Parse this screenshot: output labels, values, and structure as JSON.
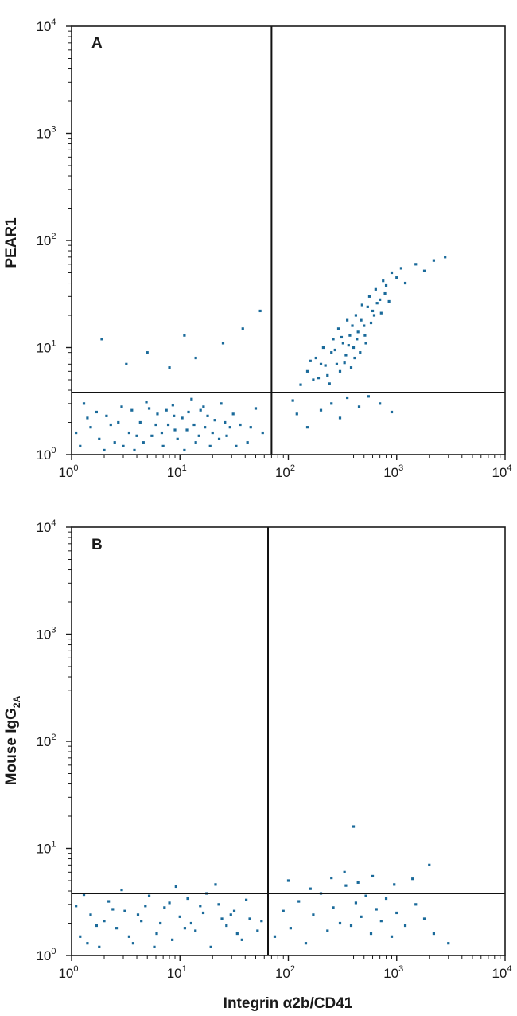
{
  "chart_data": [
    {
      "type": "scatter",
      "panel": "A",
      "xlabel": "",
      "ylabel": "PEAR1",
      "xscale": "log",
      "yscale": "log",
      "xlim": [
        1,
        10000
      ],
      "ylim": [
        1,
        10000
      ],
      "x_tick_labels": [
        {
          "base": "10",
          "exp": "0"
        },
        {
          "base": "10",
          "exp": "1"
        },
        {
          "base": "10",
          "exp": "2"
        },
        {
          "base": "10",
          "exp": "3"
        },
        {
          "base": "10",
          "exp": "4"
        }
      ],
      "y_tick_labels": [
        {
          "base": "10",
          "exp": "0"
        },
        {
          "base": "10",
          "exp": "1"
        },
        {
          "base": "10",
          "exp": "2"
        },
        {
          "base": "10",
          "exp": "3"
        },
        {
          "base": "10",
          "exp": "4"
        }
      ],
      "quadrant_gate": {
        "x": 70,
        "y": 3.8
      },
      "point_color": "#1a6a9a",
      "series": [
        {
          "points": [
            [
              1.2,
              1.2
            ],
            [
              1.5,
              1.8
            ],
            [
              1.8,
              1.4
            ],
            [
              2.1,
              2.3
            ],
            [
              2.5,
              1.3
            ],
            [
              2.9,
              2.8
            ],
            [
              3.4,
              1.6
            ],
            [
              3.8,
              1.1
            ],
            [
              4.3,
              2.0
            ],
            [
              4.9,
              3.1
            ],
            [
              5.5,
              1.5
            ],
            [
              6.2,
              2.4
            ],
            [
              7.0,
              1.2
            ],
            [
              7.8,
              1.9
            ],
            [
              8.6,
              2.9
            ],
            [
              9.5,
              1.4
            ],
            [
              10.5,
              2.2
            ],
            [
              11.6,
              1.7
            ],
            [
              12.8,
              3.3
            ],
            [
              14.0,
              1.3
            ],
            [
              15.5,
              2.6
            ],
            [
              17.0,
              1.8
            ],
            [
              19.0,
              1.2
            ],
            [
              21.0,
              2.1
            ],
            [
              24.0,
              3.0
            ],
            [
              27.0,
              1.5
            ],
            [
              31.0,
              2.4
            ],
            [
              36.0,
              1.9
            ],
            [
              42.0,
              1.3
            ],
            [
              50.0,
              2.7
            ],
            [
              58.0,
              1.6
            ],
            [
              1.3,
              3.0
            ],
            [
              1.7,
              2.5
            ],
            [
              2.3,
              1.9
            ],
            [
              3.0,
              1.2
            ],
            [
              4.0,
              1.5
            ],
            [
              5.2,
              2.7
            ],
            [
              6.8,
              1.6
            ],
            [
              8.8,
              2.3
            ],
            [
              11.0,
              1.1
            ],
            [
              13.5,
              1.9
            ],
            [
              16.5,
              2.8
            ],
            [
              20.0,
              1.6
            ],
            [
              26.0,
              2.0
            ],
            [
              33.0,
              1.2
            ],
            [
              45.0,
              1.8
            ],
            [
              1.1,
              1.6
            ],
            [
              1.4,
              2.2
            ],
            [
              2.0,
              1.1
            ],
            [
              2.7,
              2.0
            ],
            [
              3.6,
              2.6
            ],
            [
              4.6,
              1.3
            ],
            [
              6.0,
              1.9
            ],
            [
              7.5,
              2.6
            ],
            [
              9.0,
              1.7
            ],
            [
              12.0,
              2.5
            ],
            [
              15.0,
              1.5
            ],
            [
              18.0,
              2.3
            ],
            [
              23.0,
              1.4
            ],
            [
              29.0,
              1.8
            ],
            [
              1.9,
              12
            ],
            [
              3.2,
              7
            ],
            [
              5,
              9
            ],
            [
              8,
              6.5
            ],
            [
              11,
              13
            ],
            [
              14,
              8
            ],
            [
              25,
              11
            ],
            [
              38,
              15
            ],
            [
              55,
              22
            ],
            [
              110,
              3.2
            ],
            [
              130,
              4.5
            ],
            [
              150,
              6
            ],
            [
              170,
              5
            ],
            [
              180,
              8
            ],
            [
              200,
              7
            ],
            [
              210,
              10
            ],
            [
              230,
              5.5
            ],
            [
              250,
              9
            ],
            [
              260,
              12
            ],
            [
              280,
              7
            ],
            [
              290,
              15
            ],
            [
              300,
              6
            ],
            [
              320,
              11
            ],
            [
              340,
              8.5
            ],
            [
              350,
              18
            ],
            [
              370,
              13
            ],
            [
              380,
              6.5
            ],
            [
              400,
              10
            ],
            [
              420,
              20
            ],
            [
              440,
              14
            ],
            [
              460,
              9
            ],
            [
              480,
              25
            ],
            [
              500,
              16
            ],
            [
              520,
              11
            ],
            [
              560,
              30
            ],
            [
              600,
              22
            ],
            [
              640,
              35
            ],
            [
              700,
              28
            ],
            [
              750,
              42
            ],
            [
              800,
              38
            ],
            [
              900,
              50
            ],
            [
              1000,
              45
            ],
            [
              1100,
              55
            ],
            [
              1200,
              40
            ],
            [
              1500,
              60
            ],
            [
              1800,
              52
            ],
            [
              2200,
              65
            ],
            [
              2800,
              70
            ],
            [
              120,
              2.4
            ],
            [
              150,
              1.8
            ],
            [
              200,
              2.6
            ],
            [
              250,
              3.0
            ],
            [
              300,
              2.2
            ],
            [
              350,
              3.4
            ],
            [
              450,
              2.8
            ],
            [
              550,
              3.5
            ],
            [
              700,
              3.0
            ],
            [
              900,
              2.5
            ],
            [
              160,
              7.5
            ],
            [
              190,
              5.2
            ],
            [
              220,
              6.8
            ],
            [
              240,
              4.6
            ],
            [
              270,
              9.5
            ],
            [
              310,
              12.5
            ],
            [
              330,
              7.2
            ],
            [
              360,
              10.5
            ],
            [
              390,
              16
            ],
            [
              410,
              8
            ],
            [
              430,
              12
            ],
            [
              470,
              18
            ],
            [
              510,
              13
            ],
            [
              540,
              24
            ],
            [
              580,
              17
            ],
            [
              620,
              20
            ],
            [
              660,
              26
            ],
            [
              720,
              21
            ],
            [
              780,
              32
            ],
            [
              850,
              27
            ]
          ]
        }
      ]
    },
    {
      "type": "scatter",
      "panel": "B",
      "xlabel": "Integrin α2b/CD41",
      "ylabel": "Mouse IgG",
      "ylabel_subscript": "2A",
      "xscale": "log",
      "yscale": "log",
      "xlim": [
        1,
        10000
      ],
      "ylim": [
        1,
        10000
      ],
      "x_tick_labels": [
        {
          "base": "10",
          "exp": "0"
        },
        {
          "base": "10",
          "exp": "1"
        },
        {
          "base": "10",
          "exp": "2"
        },
        {
          "base": "10",
          "exp": "3"
        },
        {
          "base": "10",
          "exp": "4"
        }
      ],
      "y_tick_labels": [
        {
          "base": "10",
          "exp": "0"
        },
        {
          "base": "10",
          "exp": "1"
        },
        {
          "base": "10",
          "exp": "2"
        },
        {
          "base": "10",
          "exp": "3"
        },
        {
          "base": "10",
          "exp": "4"
        }
      ],
      "quadrant_gate": {
        "x": 65,
        "y": 3.8
      },
      "point_color": "#1a6a9a",
      "series": [
        {
          "points": [
            [
              1.2,
              1.5
            ],
            [
              1.5,
              2.4
            ],
            [
              1.8,
              1.2
            ],
            [
              2.2,
              3.2
            ],
            [
              2.6,
              1.8
            ],
            [
              3.1,
              2.6
            ],
            [
              3.7,
              1.3
            ],
            [
              4.4,
              2.1
            ],
            [
              5.2,
              3.6
            ],
            [
              6.1,
              1.6
            ],
            [
              7.2,
              2.8
            ],
            [
              8.5,
              1.4
            ],
            [
              10.0,
              2.3
            ],
            [
              11.8,
              3.4
            ],
            [
              13.9,
              1.7
            ],
            [
              16.4,
              2.5
            ],
            [
              19.3,
              1.2
            ],
            [
              22.8,
              3.0
            ],
            [
              26.9,
              1.9
            ],
            [
              31.7,
              2.6
            ],
            [
              37.4,
              1.4
            ],
            [
              44.1,
              2.2
            ],
            [
              52.0,
              1.7
            ],
            [
              1.3,
              3.7
            ],
            [
              1.7,
              1.9
            ],
            [
              2.4,
              2.7
            ],
            [
              3.4,
              1.5
            ],
            [
              4.8,
              2.9
            ],
            [
              6.6,
              2.0
            ],
            [
              9.2,
              4.4
            ],
            [
              12.7,
              2.0
            ],
            [
              17.6,
              3.8
            ],
            [
              24.4,
              2.2
            ],
            [
              33.8,
              1.6
            ],
            [
              1.1,
              2.9
            ],
            [
              1.4,
              1.3
            ],
            [
              2.0,
              2.1
            ],
            [
              2.9,
              4.1
            ],
            [
              4.1,
              2.4
            ],
            [
              5.8,
              1.2
            ],
            [
              8.0,
              3.1
            ],
            [
              11.1,
              1.8
            ],
            [
              15.4,
              2.9
            ],
            [
              21.3,
              4.6
            ],
            [
              29.5,
              2.4
            ],
            [
              40.9,
              3.3
            ],
            [
              56.6,
              2.1
            ],
            [
              75,
              1.5
            ],
            [
              90,
              2.6
            ],
            [
              105,
              1.8
            ],
            [
              125,
              3.2
            ],
            [
              145,
              1.3
            ],
            [
              170,
              2.4
            ],
            [
              200,
              3.8
            ],
            [
              230,
              1.7
            ],
            [
              260,
              2.8
            ],
            [
              300,
              2.0
            ],
            [
              340,
              4.5
            ],
            [
              380,
              1.9
            ],
            [
              420,
              3.1
            ],
            [
              470,
              2.3
            ],
            [
              520,
              3.6
            ],
            [
              580,
              1.6
            ],
            [
              650,
              2.7
            ],
            [
              720,
              2.1
            ],
            [
              800,
              3.4
            ],
            [
              900,
              1.5
            ],
            [
              1000,
              2.5
            ],
            [
              1200,
              1.9
            ],
            [
              1500,
              3.0
            ],
            [
              1800,
              2.2
            ],
            [
              2200,
              1.6
            ],
            [
              100,
              5.0
            ],
            [
              160,
              4.2
            ],
            [
              250,
              5.3
            ],
            [
              330,
              6.0
            ],
            [
              440,
              4.8
            ],
            [
              600,
              5.5
            ],
            [
              950,
              4.6
            ],
            [
              1400,
              5.2
            ],
            [
              400,
              16
            ],
            [
              2000,
              7.0
            ],
            [
              3000,
              1.3
            ]
          ]
        }
      ]
    }
  ]
}
